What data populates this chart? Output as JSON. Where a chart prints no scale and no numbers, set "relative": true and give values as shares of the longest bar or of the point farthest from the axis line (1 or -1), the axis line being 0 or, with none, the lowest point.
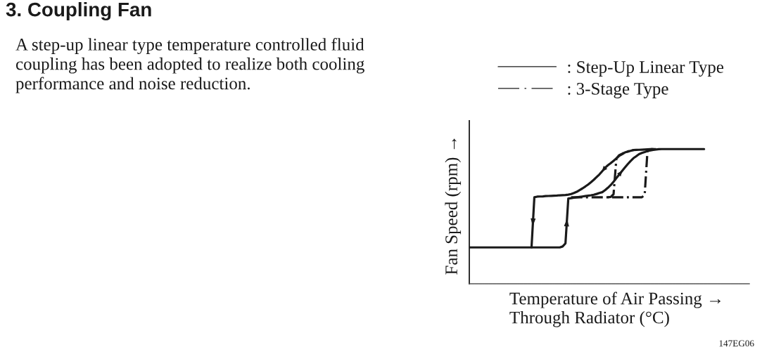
{
  "chart_data": {
    "type": "line",
    "title": "3. Coupling Fan",
    "subtitle": "A step-up linear type temperature controlled fluid\ncoupling has been adopted to realize both cooling\nperformance and noise reduction.",
    "xlabel": "Temperature of Air Passing →\nThrough Radiator (°C)",
    "ylabel": "Fan Speed (rpm) →",
    "annotations": [
      "147EG06"
    ],
    "relative": true,
    "legend": "top",
    "marker": "none",
    "categories": [
      null,
      null,
      null,
      null,
      null,
      null,
      null,
      null,
      null,
      null,
      null,
      null,
      null,
      null,
      null,
      null,
      null,
      null,
      null,
      null,
      null,
      null,
      null,
      null,
      null,
      null,
      null,
      null,
      null,
      null,
      null,
      null,
      null,
      null,
      null,
      null,
      null,
      null,
      null,
      null,
      null,
      null,
      null,
      null,
      null,
      null,
      null,
      null,
      null,
      null,
      null,
      null,
      null,
      null,
      null,
      null,
      null,
      null,
      null,
      null,
      null,
      null,
      null,
      null,
      null,
      null,
      null,
      null,
      null,
      null,
      null,
      null,
      null,
      null,
      null,
      null,
      null,
      null,
      null,
      null,
      null,
      null,
      null,
      null,
      null,
      null,
      null,
      null,
      null,
      null,
      null,
      null,
      null,
      null,
      null,
      null,
      null,
      null,
      null,
      null
    ],
    "series": [
      {
        "name": ": Step-Up Linear Type",
        "color": "#1a1a1a",
        "line_style": "solid",
        "values": [
          0.27,
          0.27,
          0.27,
          0.27,
          0.27,
          0.27,
          0.27,
          0.27,
          0.27,
          0.27,
          0.27,
          0.27,
          0.27,
          0.27,
          0.27,
          0.27,
          0.27,
          0.27,
          0.27,
          0.27,
          0.27,
          0.27,
          0.27,
          0.27,
          0.27,
          0.27,
          0.27,
          0.27,
          0.27,
          0.27,
          0.27,
          0.27,
          0.27,
          0.277,
          0.3,
          0.633,
          0.636,
          0.639,
          0.642,
          0.645,
          0.648,
          0.651,
          0.654,
          0.657,
          0.661,
          0.667,
          0.674,
          0.68,
          0.695,
          0.713,
          0.733,
          0.758,
          0.785,
          0.811,
          0.837,
          0.863,
          0.888,
          0.911,
          0.932,
          0.947,
          0.962,
          0.971,
          0.978,
          0.986,
          0.99,
          0.994,
          0.997,
          0.999,
          1,
          1,
          1,
          1,
          1,
          1,
          1,
          1,
          1,
          1,
          1,
          1,
          1,
          1,
          1,
          1,
          null,
          null,
          null,
          null,
          null,
          null,
          null,
          null,
          null,
          null,
          null,
          null,
          null,
          null,
          null,
          null
        ]
      },
      {
        "color": "#1a1a1a",
        "line_style": "solid",
        "values": [
          null,
          null,
          null,
          null,
          null,
          null,
          null,
          null,
          null,
          null,
          null,
          null,
          null,
          null,
          null,
          null,
          null,
          null,
          null,
          null,
          null,
          null,
          0.27,
          0.642,
          0.647,
          0.648,
          0.649,
          0.651,
          0.652,
          0.653,
          0.654,
          0.655,
          0.657,
          0.658,
          0.659,
          0.662,
          0.666,
          0.674,
          0.683,
          0.696,
          0.708,
          0.722,
          0.737,
          0.754,
          0.772,
          0.792,
          0.812,
          0.836,
          0.861,
          0.88,
          0.896,
          0.913,
          0.931,
          0.95,
          0.962,
          0.975,
          0.981,
          0.987,
          0.993,
          0.994,
          0.995,
          0.996,
          0.997,
          0.998,
          0.999,
          1,
          null,
          null,
          null,
          null,
          null,
          null,
          null,
          null,
          null,
          null,
          null,
          null,
          null,
          null,
          null,
          null,
          null,
          null,
          null,
          null,
          null,
          null,
          null,
          null,
          null,
          null,
          null,
          null,
          null,
          null,
          null,
          null,
          null,
          null
        ]
      },
      {
        "name": ": 3-Stage Type",
        "color": "#1a1a1a",
        "line_style": "dashdot",
        "values": [
          null,
          null,
          null,
          null,
          null,
          null,
          null,
          null,
          null,
          null,
          null,
          null,
          null,
          null,
          null,
          null,
          null,
          null,
          null,
          null,
          null,
          null,
          null,
          null,
          null,
          null,
          null,
          null,
          null,
          null,
          null,
          null,
          null,
          null,
          null,
          null,
          0.642,
          0.642,
          0.642,
          0.642,
          0.642,
          0.642,
          0.642,
          0.642,
          0.642,
          0.642,
          0.642,
          0.642,
          0.642,
          0.642,
          0.642,
          0.642,
          0.642,
          0.642,
          0.642,
          0.642,
          0.642,
          0.642,
          0.642,
          0.642,
          0.642,
          0.642,
          0.66,
          0.99,
          1,
          1,
          1,
          null,
          null,
          null,
          null,
          null,
          null,
          null,
          null,
          null,
          null,
          null,
          null,
          null,
          null,
          null,
          null,
          null,
          null,
          null,
          null,
          null,
          null,
          null,
          null,
          null,
          null,
          null,
          null,
          null,
          null,
          null,
          null,
          null
        ]
      },
      {
        "color": "#1a1a1a",
        "line_style": "dashdot",
        "values": [
          null,
          null,
          null,
          null,
          null,
          null,
          null,
          null,
          null,
          null,
          null,
          null,
          null,
          null,
          null,
          null,
          null,
          null,
          null,
          null,
          null,
          null,
          null,
          null,
          null,
          null,
          null,
          null,
          null,
          null,
          null,
          null,
          null,
          null,
          null,
          null,
          null,
          null,
          null,
          null,
          null,
          null,
          null,
          null,
          null,
          null,
          null,
          null,
          null,
          0.642,
          0.645,
          0.665,
          0.93,
          0.955,
          0.965,
          0.976,
          0.982,
          0.988,
          0.993,
          null,
          null,
          null,
          null,
          null,
          null,
          null,
          null,
          null,
          null,
          null,
          null,
          null,
          null,
          null,
          null,
          null,
          null,
          null,
          null,
          null,
          null,
          null,
          null,
          null,
          null,
          null,
          null,
          null,
          null,
          null,
          null,
          null,
          null,
          null,
          null,
          null,
          null,
          null,
          null,
          null
        ]
      }
    ]
  }
}
